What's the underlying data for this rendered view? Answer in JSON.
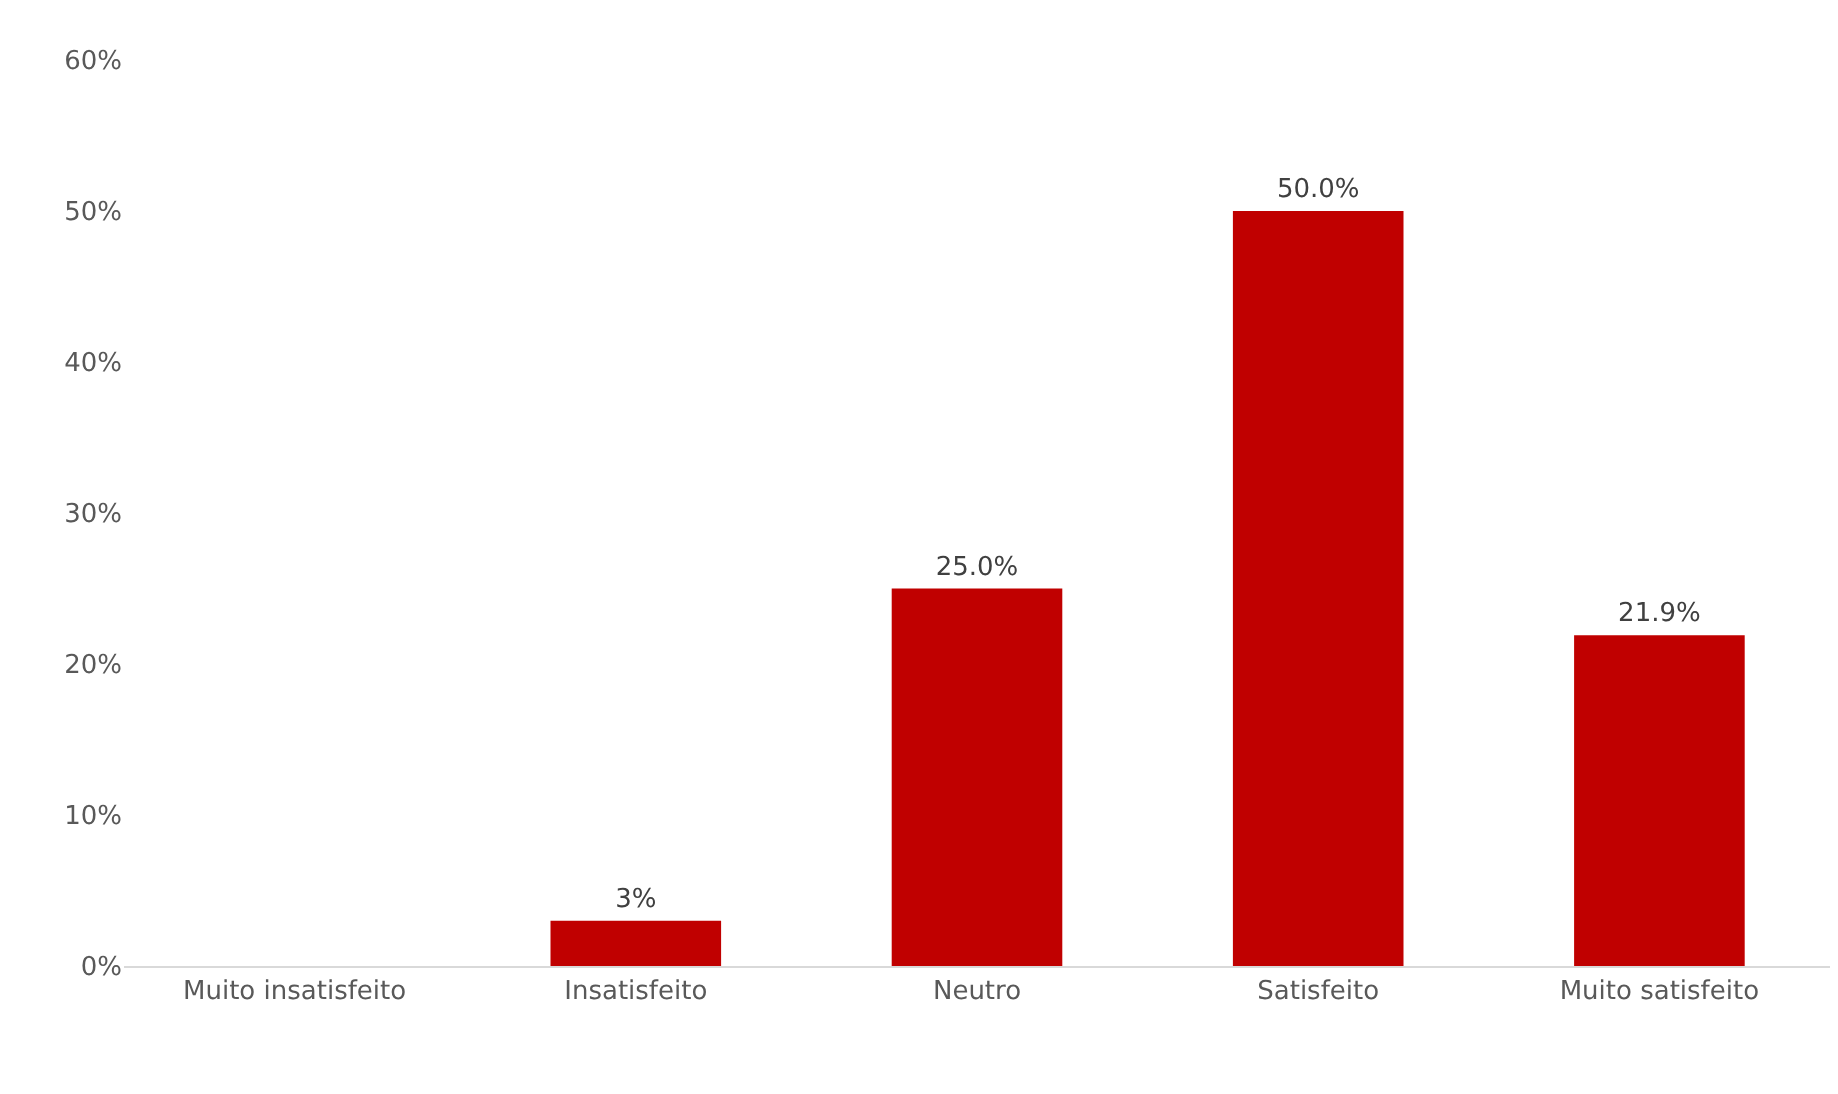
{
  "chart_data": {
    "type": "bar",
    "categories": [
      "Muito insatisfeito",
      "Insatisfeito",
      "Neutro",
      "Satisfeito",
      "Muito satisfeito"
    ],
    "values": [
      0,
      3,
      25.0,
      50.0,
      21.9
    ],
    "value_labels": [
      null,
      "3%",
      "25.0%",
      "50.0%",
      "21.9%"
    ],
    "color": "#c00000",
    "ylim": [
      0,
      60
    ],
    "yticks": [
      {
        "value": 0,
        "label": "0%"
      },
      {
        "value": 10,
        "label": "10%"
      },
      {
        "value": 20,
        "label": "20%"
      },
      {
        "value": 30,
        "label": "30%"
      },
      {
        "value": 40,
        "label": "40%"
      },
      {
        "value": 50,
        "label": "50%"
      },
      {
        "value": 60,
        "label": "60%"
      }
    ],
    "grid": false,
    "legend": false
  }
}
